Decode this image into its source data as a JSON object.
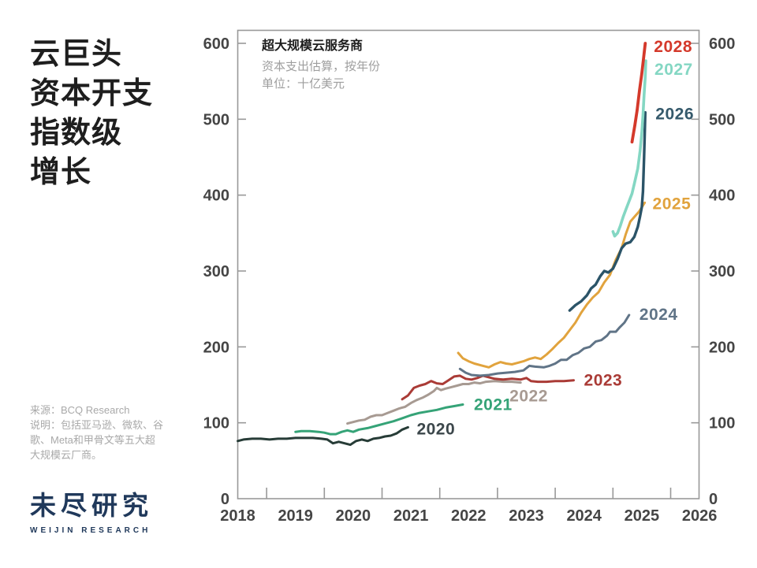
{
  "page": {
    "title_lines": [
      "云巨头",
      "资本开支",
      "指数级",
      "增长"
    ],
    "source_note_lines": [
      "来源：BCQ Research",
      "说明：包括亚马逊、微软、谷",
      "歌、Meta和甲骨文等五大超",
      "大规模云厂商。"
    ],
    "logo": {
      "cn": "未尽研究",
      "en": "WEIJIN RESEARCH"
    }
  },
  "chart_data": {
    "type": "line",
    "title": "超大规模云服务商",
    "subtitle": "资本支出估算，按年份",
    "unit_label": "单位：十亿美元",
    "xlim": [
      2018,
      2026.2
    ],
    "ylim": [
      0,
      620
    ],
    "grid": false,
    "legend_position": "line-end-labels",
    "x_ticks": [
      2018,
      2019,
      2020,
      2021,
      2022,
      2023,
      2024,
      2025,
      2026
    ],
    "x_minor_ticks": [
      2018.5,
      2019.5,
      2020.5,
      2021.5,
      2022.5,
      2023.5,
      2024.5,
      2025.5
    ],
    "y_ticks": [
      0,
      100,
      200,
      300,
      400,
      500,
      600
    ],
    "axis_color": "#999999",
    "series": [
      {
        "name": "2020",
        "color": "#273c37",
        "label_color": "#3c474b",
        "points": [
          [
            2018.0,
            76
          ],
          [
            2018.1,
            78
          ],
          [
            2018.25,
            79
          ],
          [
            2018.4,
            79
          ],
          [
            2018.55,
            78
          ],
          [
            2018.7,
            79
          ],
          [
            2018.85,
            79
          ],
          [
            2019.0,
            80
          ],
          [
            2019.15,
            80
          ],
          [
            2019.3,
            80
          ],
          [
            2019.45,
            79
          ],
          [
            2019.55,
            78
          ],
          [
            2019.65,
            73
          ],
          [
            2019.75,
            75
          ],
          [
            2019.85,
            73
          ],
          [
            2019.95,
            71
          ],
          [
            2020.05,
            76
          ],
          [
            2020.15,
            78
          ],
          [
            2020.25,
            76
          ],
          [
            2020.35,
            79
          ],
          [
            2020.45,
            80
          ],
          [
            2020.55,
            82
          ],
          [
            2020.65,
            83
          ],
          [
            2020.75,
            86
          ],
          [
            2020.85,
            91
          ],
          [
            2020.95,
            94
          ]
        ]
      },
      {
        "name": "2021",
        "color": "#35a377",
        "label_color": "#35a377",
        "points": [
          [
            2019.0,
            88
          ],
          [
            2019.1,
            89
          ],
          [
            2019.25,
            89
          ],
          [
            2019.4,
            88
          ],
          [
            2019.5,
            87
          ],
          [
            2019.6,
            85
          ],
          [
            2019.7,
            85
          ],
          [
            2019.8,
            88
          ],
          [
            2019.9,
            90
          ],
          [
            2020.0,
            88
          ],
          [
            2020.1,
            91
          ],
          [
            2020.25,
            93
          ],
          [
            2020.4,
            96
          ],
          [
            2020.55,
            99
          ],
          [
            2020.7,
            102
          ],
          [
            2020.85,
            106
          ],
          [
            2021.0,
            110
          ],
          [
            2021.15,
            113
          ],
          [
            2021.3,
            115
          ],
          [
            2021.45,
            117
          ],
          [
            2021.6,
            120
          ],
          [
            2021.75,
            122
          ],
          [
            2021.9,
            124
          ]
        ]
      },
      {
        "name": "2022",
        "color": "#a79a92",
        "label_color": "#a79a92",
        "points": [
          [
            2019.9,
            99
          ],
          [
            2020.0,
            101
          ],
          [
            2020.1,
            103
          ],
          [
            2020.2,
            104
          ],
          [
            2020.3,
            108
          ],
          [
            2020.4,
            110
          ],
          [
            2020.5,
            110
          ],
          [
            2020.6,
            113
          ],
          [
            2020.7,
            116
          ],
          [
            2020.8,
            119
          ],
          [
            2020.9,
            121
          ],
          [
            2021.0,
            126
          ],
          [
            2021.1,
            130
          ],
          [
            2021.2,
            133
          ],
          [
            2021.3,
            137
          ],
          [
            2021.4,
            142
          ],
          [
            2021.45,
            146
          ],
          [
            2021.52,
            143
          ],
          [
            2021.6,
            145
          ],
          [
            2021.7,
            147
          ],
          [
            2021.8,
            149
          ],
          [
            2021.9,
            151
          ],
          [
            2022.0,
            151
          ],
          [
            2022.1,
            153
          ],
          [
            2022.2,
            152
          ],
          [
            2022.3,
            154
          ],
          [
            2022.45,
            155
          ],
          [
            2022.6,
            154
          ],
          [
            2022.75,
            154
          ],
          [
            2022.9,
            153
          ]
        ]
      },
      {
        "name": "2023",
        "color": "#aa3b36",
        "label_color": "#aa3b36",
        "points": [
          [
            2020.85,
            131
          ],
          [
            2020.95,
            136
          ],
          [
            2021.05,
            146
          ],
          [
            2021.15,
            149
          ],
          [
            2021.25,
            151
          ],
          [
            2021.35,
            155
          ],
          [
            2021.45,
            152
          ],
          [
            2021.55,
            151
          ],
          [
            2021.65,
            156
          ],
          [
            2021.75,
            161
          ],
          [
            2021.85,
            162
          ],
          [
            2021.95,
            158
          ],
          [
            2022.05,
            157
          ],
          [
            2022.15,
            159
          ],
          [
            2022.25,
            162
          ],
          [
            2022.35,
            160
          ],
          [
            2022.45,
            158
          ],
          [
            2022.6,
            157
          ],
          [
            2022.75,
            158
          ],
          [
            2022.9,
            157
          ],
          [
            2023.0,
            159
          ],
          [
            2023.08,
            155
          ],
          [
            2023.2,
            154
          ],
          [
            2023.35,
            154
          ],
          [
            2023.5,
            155
          ],
          [
            2023.65,
            155
          ],
          [
            2023.82,
            156
          ]
        ]
      },
      {
        "name": "2024",
        "color": "#607487",
        "label_color": "#607487",
        "points": [
          [
            2021.85,
            171
          ],
          [
            2021.95,
            166
          ],
          [
            2022.05,
            163
          ],
          [
            2022.2,
            162
          ],
          [
            2022.35,
            163
          ],
          [
            2022.5,
            165
          ],
          [
            2022.65,
            166
          ],
          [
            2022.8,
            167
          ],
          [
            2022.95,
            169
          ],
          [
            2023.05,
            175
          ],
          [
            2023.15,
            174
          ],
          [
            2023.3,
            173
          ],
          [
            2023.4,
            175
          ],
          [
            2023.5,
            178
          ],
          [
            2023.6,
            183
          ],
          [
            2023.7,
            183
          ],
          [
            2023.8,
            189
          ],
          [
            2023.9,
            192
          ],
          [
            2024.0,
            198
          ],
          [
            2024.1,
            200
          ],
          [
            2024.2,
            207
          ],
          [
            2024.3,
            209
          ],
          [
            2024.4,
            215
          ],
          [
            2024.45,
            220
          ],
          [
            2024.55,
            220
          ],
          [
            2024.62,
            226
          ],
          [
            2024.7,
            232
          ],
          [
            2024.78,
            242
          ]
        ]
      },
      {
        "name": "2025",
        "color": "#e1a33d",
        "label_color": "#e1a33d",
        "points": [
          [
            2021.82,
            192
          ],
          [
            2021.9,
            185
          ],
          [
            2022.0,
            181
          ],
          [
            2022.1,
            178
          ],
          [
            2022.25,
            175
          ],
          [
            2022.35,
            173
          ],
          [
            2022.45,
            177
          ],
          [
            2022.55,
            180
          ],
          [
            2022.65,
            178
          ],
          [
            2022.75,
            177
          ],
          [
            2022.85,
            179
          ],
          [
            2022.95,
            181
          ],
          [
            2023.05,
            184
          ],
          [
            2023.15,
            186
          ],
          [
            2023.25,
            184
          ],
          [
            2023.35,
            190
          ],
          [
            2023.45,
            197
          ],
          [
            2023.55,
            205
          ],
          [
            2023.65,
            212
          ],
          [
            2023.75,
            222
          ],
          [
            2023.85,
            232
          ],
          [
            2023.95,
            245
          ],
          [
            2024.05,
            256
          ],
          [
            2024.15,
            265
          ],
          [
            2024.25,
            272
          ],
          [
            2024.35,
            285
          ],
          [
            2024.45,
            295
          ],
          [
            2024.55,
            315
          ],
          [
            2024.65,
            330
          ],
          [
            2024.72,
            348
          ],
          [
            2024.8,
            365
          ],
          [
            2024.88,
            372
          ],
          [
            2024.95,
            378
          ],
          [
            2025.05,
            390
          ]
        ]
      },
      {
        "name": "2026",
        "color": "#2b5468",
        "label_color": "#35596b",
        "points": [
          [
            2023.75,
            248
          ],
          [
            2023.85,
            255
          ],
          [
            2023.95,
            260
          ],
          [
            2024.05,
            268
          ],
          [
            2024.12,
            277
          ],
          [
            2024.2,
            282
          ],
          [
            2024.28,
            293
          ],
          [
            2024.35,
            300
          ],
          [
            2024.42,
            298
          ],
          [
            2024.5,
            303
          ],
          [
            2024.58,
            316
          ],
          [
            2024.65,
            330
          ],
          [
            2024.72,
            336
          ],
          [
            2024.8,
            338
          ],
          [
            2024.87,
            345
          ],
          [
            2024.93,
            358
          ],
          [
            2024.97,
            372
          ],
          [
            2025.0,
            384
          ],
          [
            2025.02,
            405
          ],
          [
            2025.04,
            450
          ],
          [
            2025.05,
            480
          ],
          [
            2025.06,
            509
          ]
        ]
      },
      {
        "name": "2027",
        "color": "#84d7c3",
        "label_color": "#84d7c3",
        "points": [
          [
            2024.5,
            352
          ],
          [
            2024.53,
            346
          ],
          [
            2024.58,
            350
          ],
          [
            2024.63,
            360
          ],
          [
            2024.68,
            372
          ],
          [
            2024.73,
            382
          ],
          [
            2024.78,
            392
          ],
          [
            2024.83,
            402
          ],
          [
            2024.88,
            418
          ],
          [
            2024.93,
            435
          ],
          [
            2024.97,
            458
          ],
          [
            2025.0,
            482
          ],
          [
            2025.02,
            505
          ],
          [
            2025.04,
            532
          ],
          [
            2025.06,
            556
          ],
          [
            2025.07,
            577
          ]
        ]
      },
      {
        "name": "2028",
        "color": "#d4392b",
        "label_color": "#d4392b",
        "points": [
          [
            2024.83,
            470
          ],
          [
            2024.88,
            492
          ],
          [
            2024.92,
            512
          ],
          [
            2024.96,
            538
          ],
          [
            2025.0,
            560
          ],
          [
            2025.03,
            580
          ],
          [
            2025.06,
            600
          ]
        ]
      }
    ]
  }
}
